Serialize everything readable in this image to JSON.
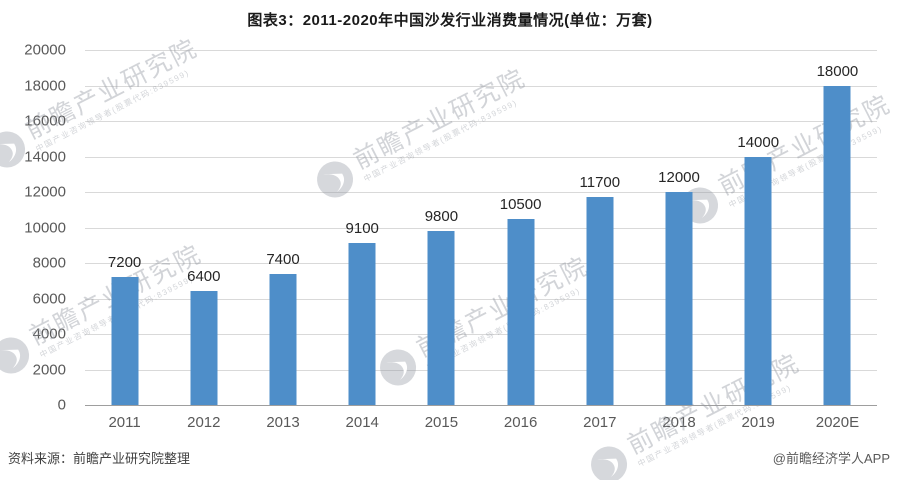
{
  "title": "图表3：2011-2020年中国沙发行业消费量情况(单位：万套)",
  "footer": {
    "source": "资料来源：前瞻产业研究院整理",
    "credit": "@前瞻经济学人APP"
  },
  "watermark": {
    "logo_icon": "qianzhan-swoosh-logo",
    "main": "前瞻产业研究院",
    "sub": "中国产业咨询领导者(股票代码:839599)"
  },
  "colors": {
    "bar": "#4e8ec9",
    "grid": "#d9d9d9",
    "axis_line": "#9e9e9e",
    "value_label": "#262626",
    "tick_label": "#595959",
    "watermark": "#9498a2"
  },
  "chart_data": {
    "type": "bar",
    "title": "图表3：2011-2020年中国沙发行业消费量情况(单位：万套)",
    "categories": [
      "2011",
      "2012",
      "2013",
      "2014",
      "2015",
      "2016",
      "2017",
      "2018",
      "2019",
      "2020E"
    ],
    "values": [
      7200,
      6400,
      7400,
      9100,
      9800,
      10500,
      11700,
      12000,
      14000,
      18000
    ],
    "unit": "万套",
    "xlabel": "",
    "ylabel": "",
    "ylim": [
      0,
      20000
    ],
    "ytick_step": 2000,
    "ytick_labels": [
      "0",
      "2000",
      "4000",
      "6000",
      "8000",
      "10000",
      "12000",
      "14000",
      "16000",
      "18000",
      "20000"
    ],
    "grid": true,
    "legend_position": "none"
  }
}
